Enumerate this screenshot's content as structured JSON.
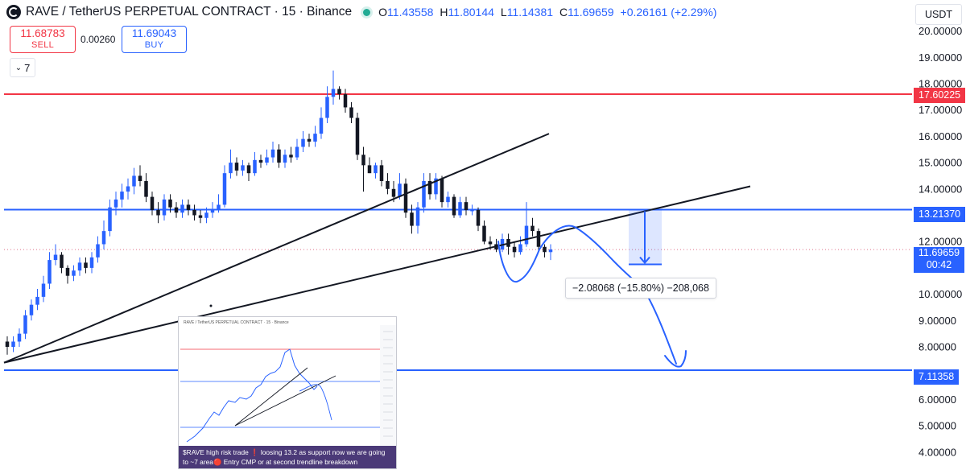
{
  "header": {
    "title": "RAVE / TetherUS PERPETUAL CONTRACT · 15 · Binance",
    "ohlc": {
      "o_label": "O",
      "o": "11.43558",
      "h_label": "H",
      "h": "11.80144",
      "l_label": "L",
      "l": "11.14381",
      "c_label": "C",
      "c": "11.69659",
      "change": "+0.26161 (+2.29%)"
    }
  },
  "trade": {
    "sell_price": "11.68783",
    "sell_label": "SELL",
    "spread": "0.00260",
    "buy_price": "11.69043",
    "buy_label": "BUY"
  },
  "indicators_toggle": {
    "count": "7",
    "icon": "chevron-down-icon"
  },
  "currency": "USDT",
  "price_labels": {
    "red_level": "17.60225",
    "blue_upper": "13.21370",
    "blue_lower": "7.11358",
    "current": "11.69659",
    "countdown": "00:42"
  },
  "measure": {
    "text": "−2.08068 (−15.80%) −208,068"
  },
  "inset": {
    "header": "RAVE / TetherUS PERPETUAL CONTRACT · 15 · Binance",
    "caption_line1": "$RAVE high risk trade ❗ loosing 13.2 as support now we are going",
    "caption_line2": "to ~7 area🔴 Entry CMP or at second trendline breakdown"
  },
  "colors": {
    "up": "#2962ff",
    "down": "#131722",
    "red_line": "#f23645",
    "blue_line": "#2962ff",
    "arrow": "#2962ff"
  },
  "chart_data": {
    "type": "candlestick",
    "symbol": "RAVE / TetherUS PERPETUAL CONTRACT",
    "interval": "15",
    "exchange": "Binance",
    "y_axis_ticks": [
      "20.00000",
      "19.00000",
      "18.00000",
      "17.00000",
      "16.00000",
      "15.00000",
      "14.00000",
      "13.00000",
      "12.00000",
      "11.00000",
      "10.00000",
      "9.00000",
      "8.00000",
      "7.00000",
      "6.00000",
      "5.00000",
      "4.00000"
    ],
    "ylim": [
      3.7,
      20.4
    ],
    "horizontal_levels": [
      {
        "price": 17.60225,
        "color": "#f23645"
      },
      {
        "price": 13.2137,
        "color": "#2962ff"
      },
      {
        "price": 7.11358,
        "color": "#2962ff"
      }
    ],
    "last_price": 11.69659,
    "measurement": {
      "from": 13.2137,
      "to": 11.13302,
      "change": -2.08068,
      "percent": -15.8
    },
    "projected_path": [
      12.0,
      11.0,
      12.3,
      13.0,
      12.0,
      10.3,
      8.8,
      7.7,
      8.0
    ],
    "trendlines": [
      {
        "from": 7.4,
        "to": 16.1
      },
      {
        "from": 7.4,
        "to": 14.1
      }
    ],
    "candles": {
      "open": [
        8.2,
        8.0,
        8.2,
        8.5,
        9.2,
        9.6,
        9.9,
        10.4,
        11.3,
        11.5,
        11.0,
        10.7,
        10.9,
        11.2,
        11.0,
        11.4,
        11.9,
        12.4,
        13.3,
        13.6,
        13.9,
        14.1,
        14.5,
        14.3,
        13.7,
        13.2,
        13.0,
        13.6,
        13.3,
        13.1,
        13.4,
        13.2,
        13.0,
        12.9,
        13.1,
        13.2,
        13.4,
        14.6,
        15.0,
        14.7,
        14.9,
        14.6,
        15.1,
        15.0,
        15.2,
        15.5,
        15.0,
        15.3,
        15.2,
        15.6,
        15.9,
        15.8,
        16.1,
        16.7,
        17.5,
        17.8,
        17.6,
        17.1,
        16.7,
        15.3,
        14.9,
        14.6,
        14.9,
        14.3,
        14.0,
        13.7,
        14.2,
        13.1,
        12.6,
        13.3,
        14.3,
        13.8,
        14.4,
        13.5,
        13.7,
        13.0,
        13.5,
        13.2,
        13.2,
        12.6,
        12.0,
        11.9,
        11.7,
        12.1,
        11.8,
        11.6,
        11.9,
        12.6,
        12.4,
        11.8,
        11.6
      ],
      "close": [
        8.0,
        8.2,
        8.5,
        9.2,
        9.6,
        9.9,
        10.4,
        11.3,
        11.5,
        11.0,
        10.7,
        10.9,
        11.2,
        11.0,
        11.4,
        11.9,
        12.4,
        13.3,
        13.6,
        13.9,
        14.1,
        14.5,
        14.3,
        13.7,
        13.2,
        13.0,
        13.6,
        13.3,
        13.1,
        13.4,
        13.2,
        13.0,
        12.9,
        13.1,
        13.2,
        13.4,
        14.6,
        15.0,
        14.7,
        14.9,
        14.6,
        15.1,
        15.0,
        15.2,
        15.5,
        15.0,
        15.3,
        15.2,
        15.6,
        15.9,
        15.8,
        16.1,
        16.7,
        17.5,
        17.8,
        17.6,
        17.1,
        16.7,
        15.3,
        14.9,
        14.6,
        14.9,
        14.3,
        14.0,
        13.7,
        14.2,
        13.1,
        12.6,
        13.3,
        14.3,
        13.8,
        14.4,
        13.5,
        13.7,
        13.0,
        13.5,
        13.2,
        13.2,
        12.6,
        12.0,
        11.9,
        11.7,
        12.1,
        11.8,
        11.6,
        11.9,
        12.6,
        12.4,
        11.8,
        11.6,
        11.7
      ],
      "high": [
        8.4,
        8.4,
        8.7,
        9.4,
        9.8,
        10.2,
        10.7,
        11.6,
        11.9,
        11.6,
        11.1,
        11.1,
        11.4,
        11.4,
        11.6,
        12.2,
        12.8,
        13.6,
        13.9,
        14.2,
        14.4,
        14.8,
        14.9,
        14.6,
        13.9,
        13.5,
        13.8,
        13.8,
        13.5,
        13.6,
        13.6,
        13.4,
        13.2,
        13.3,
        13.5,
        13.8,
        14.9,
        15.5,
        15.2,
        15.1,
        15.0,
        15.4,
        15.3,
        15.5,
        15.8,
        15.7,
        15.5,
        15.6,
        15.9,
        16.2,
        16.1,
        16.4,
        17.1,
        17.9,
        18.5,
        17.9,
        17.8,
        17.3,
        16.9,
        15.6,
        15.2,
        15.0,
        15.1,
        14.6,
        14.3,
        14.6,
        14.4,
        13.4,
        13.5,
        14.6,
        14.6,
        14.6,
        14.5,
        13.9,
        13.8,
        13.7,
        13.7,
        13.4,
        13.3,
        12.8,
        12.2,
        12.1,
        12.3,
        12.3,
        12.0,
        12.2,
        13.5,
        12.9,
        12.5,
        11.9,
        11.9
      ],
      "low": [
        7.7,
        7.8,
        8.0,
        8.3,
        9.0,
        9.4,
        9.7,
        10.2,
        11.1,
        10.8,
        10.4,
        10.5,
        10.7,
        10.8,
        10.8,
        11.2,
        11.7,
        12.2,
        13.0,
        13.3,
        13.6,
        13.8,
        14.1,
        13.5,
        13.0,
        12.7,
        12.8,
        13.1,
        12.9,
        12.9,
        13.0,
        12.8,
        12.7,
        12.7,
        12.9,
        13.1,
        13.3,
        14.4,
        14.5,
        14.5,
        14.3,
        14.5,
        14.8,
        14.9,
        15.0,
        14.8,
        14.8,
        15.0,
        15.1,
        15.4,
        15.6,
        15.6,
        15.9,
        16.5,
        17.2,
        17.4,
        16.9,
        16.5,
        15.1,
        13.9,
        14.6,
        14.4,
        14.1,
        13.8,
        13.5,
        13.6,
        12.9,
        12.3,
        12.3,
        13.1,
        13.6,
        13.6,
        13.3,
        13.3,
        12.9,
        12.9,
        13.0,
        13.0,
        12.4,
        11.9,
        11.7,
        11.6,
        11.6,
        11.5,
        11.4,
        11.5,
        11.8,
        12.2,
        11.6,
        11.4,
        11.3
      ]
    }
  }
}
